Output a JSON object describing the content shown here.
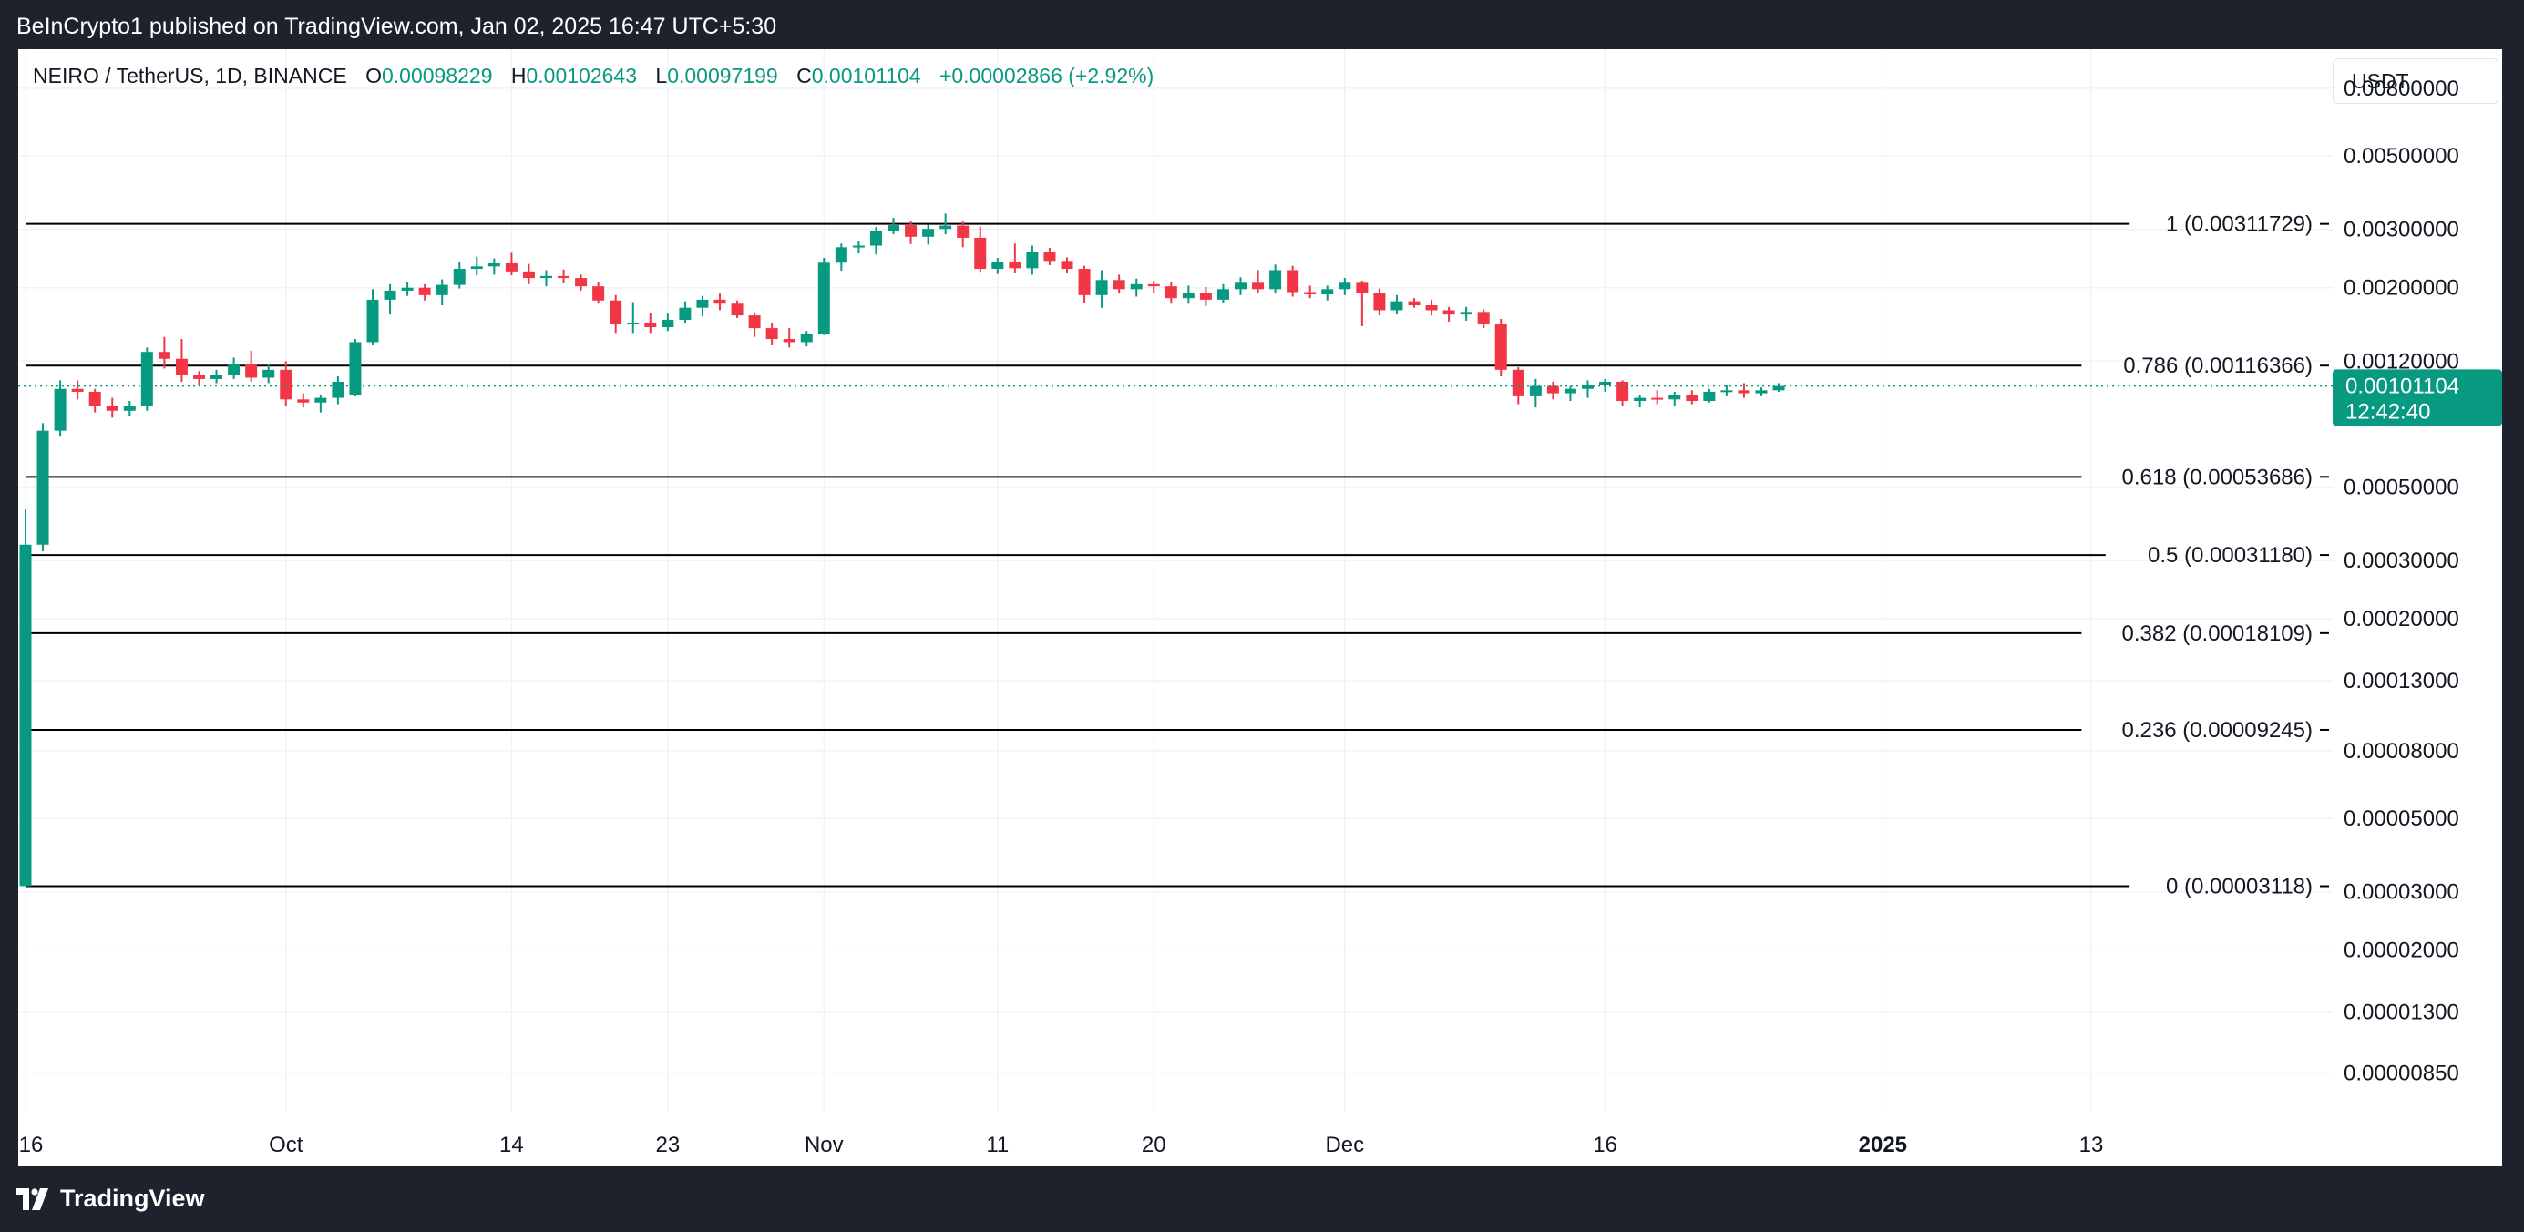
{
  "header": {
    "publisher_text": "BeInCrypto1 published on TradingView.com, Jan 02, 2025 16:47 UTC+5:30"
  },
  "footer": {
    "brand": "TradingView"
  },
  "legend": {
    "symbol": "NEIRO / TetherUS, 1D, BINANCE",
    "o_label": "O",
    "o_value": "0.00098229",
    "h_label": "H",
    "h_value": "0.00102643",
    "l_label": "L",
    "l_value": "0.00097199",
    "c_label": "C",
    "c_value": "0.00101104",
    "change": "+0.00002866 (+2.92%)"
  },
  "currency_button": "USDT",
  "colors": {
    "up": "#089981",
    "down": "#f23645",
    "grid": "#f0f3fa",
    "text": "#131722",
    "background": "#ffffff",
    "frame": "#1e222d"
  },
  "chart_data": {
    "type": "candlestick",
    "symbol": "NEIRO/USDT",
    "interval": "1D",
    "exchange": "BINANCE",
    "y_scale": "log",
    "ylim": [
      6.5e-06,
      0.0105
    ],
    "grid": true,
    "y_ticks": [
      "0.00800000",
      "0.00500000",
      "0.00300000",
      "0.00200000",
      "0.00120000",
      "0.00050000",
      "0.00030000",
      "0.00020000",
      "0.00013000",
      "0.00008000",
      "0.00005000",
      "0.00003000",
      "0.00002000",
      "0.00001300",
      "0.00000850"
    ],
    "x_ticks": [
      {
        "label": "16",
        "date": "2024-09-16"
      },
      {
        "label": "Oct",
        "date": "2024-10-01"
      },
      {
        "label": "14",
        "date": "2024-10-14"
      },
      {
        "label": "23",
        "date": "2024-10-23"
      },
      {
        "label": "Nov",
        "date": "2024-11-01"
      },
      {
        "label": "11",
        "date": "2024-11-11"
      },
      {
        "label": "20",
        "date": "2024-11-20"
      },
      {
        "label": "Dec",
        "date": "2024-12-01"
      },
      {
        "label": "16",
        "date": "2024-12-16"
      },
      {
        "label": "2025",
        "date": "2025-01-01"
      },
      {
        "label": "13",
        "date": "2025-01-13"
      }
    ],
    "last_price": {
      "value": "0.00101104",
      "countdown": "12:42:40"
    },
    "fib_levels": [
      {
        "label": "1 (0.00311729)",
        "value": 0.00311729
      },
      {
        "label": "0.786 (0.00116366)",
        "value": 0.00116366
      },
      {
        "label": "0.618 (0.00053686)",
        "value": 0.00053686
      },
      {
        "label": "0.5 (0.00031180)",
        "value": 0.0003118
      },
      {
        "label": "0.382 (0.00018109)",
        "value": 0.00018109
      },
      {
        "label": "0.236 (0.00009245)",
        "value": 9.245e-05
      },
      {
        "label": "0 (0.00003118)",
        "value": 3.118e-05
      }
    ],
    "candles": [
      {
        "date": "2024-09-16",
        "o": 3.12e-05,
        "h": 0.000428,
        "l": 3.12e-05,
        "c": 0.000335
      },
      {
        "date": "2024-09-17",
        "o": 0.000335,
        "h": 0.00078,
        "l": 0.00032,
        "c": 0.00074
      },
      {
        "date": "2024-09-18",
        "o": 0.00074,
        "h": 0.00105,
        "l": 0.00071,
        "c": 0.00099
      },
      {
        "date": "2024-09-19",
        "o": 0.00099,
        "h": 0.00105,
        "l": 0.00092,
        "c": 0.00097
      },
      {
        "date": "2024-09-20",
        "o": 0.00097,
        "h": 0.00099,
        "l": 0.00084,
        "c": 0.00088
      },
      {
        "date": "2024-09-21",
        "o": 0.00088,
        "h": 0.00093,
        "l": 0.00081,
        "c": 0.00085
      },
      {
        "date": "2024-09-22",
        "o": 0.00085,
        "h": 0.00091,
        "l": 0.00082,
        "c": 0.00088
      },
      {
        "date": "2024-09-23",
        "o": 0.00088,
        "h": 0.00132,
        "l": 0.00085,
        "c": 0.00128
      },
      {
        "date": "2024-09-24",
        "o": 0.00128,
        "h": 0.00142,
        "l": 0.00114,
        "c": 0.00122
      },
      {
        "date": "2024-09-25",
        "o": 0.00122,
        "h": 0.0014,
        "l": 0.00104,
        "c": 0.00109
      },
      {
        "date": "2024-09-26",
        "o": 0.00109,
        "h": 0.00112,
        "l": 0.00102,
        "c": 0.00106
      },
      {
        "date": "2024-09-27",
        "o": 0.00106,
        "h": 0.00113,
        "l": 0.00103,
        "c": 0.00109
      },
      {
        "date": "2024-09-28",
        "o": 0.00109,
        "h": 0.00123,
        "l": 0.00106,
        "c": 0.00118
      },
      {
        "date": "2024-09-29",
        "o": 0.00118,
        "h": 0.00129,
        "l": 0.00104,
        "c": 0.00107
      },
      {
        "date": "2024-09-30",
        "o": 0.00107,
        "h": 0.00117,
        "l": 0.00103,
        "c": 0.00113
      },
      {
        "date": "2024-10-01",
        "o": 0.00113,
        "h": 0.0012,
        "l": 0.00088,
        "c": 0.00092
      },
      {
        "date": "2024-10-02",
        "o": 0.00092,
        "h": 0.00096,
        "l": 0.00087,
        "c": 0.0009
      },
      {
        "date": "2024-10-03",
        "o": 0.0009,
        "h": 0.00095,
        "l": 0.00084,
        "c": 0.00093
      },
      {
        "date": "2024-10-04",
        "o": 0.00093,
        "h": 0.00108,
        "l": 0.00089,
        "c": 0.00104
      },
      {
        "date": "2024-10-05",
        "o": 0.00095,
        "h": 0.0014,
        "l": 0.00094,
        "c": 0.00137
      },
      {
        "date": "2024-10-06",
        "o": 0.00137,
        "h": 0.00198,
        "l": 0.00134,
        "c": 0.00184
      },
      {
        "date": "2024-10-07",
        "o": 0.00184,
        "h": 0.00205,
        "l": 0.00166,
        "c": 0.00196
      },
      {
        "date": "2024-10-08",
        "o": 0.00196,
        "h": 0.00208,
        "l": 0.00189,
        "c": 0.002
      },
      {
        "date": "2024-10-09",
        "o": 0.002,
        "h": 0.00205,
        "l": 0.00183,
        "c": 0.0019
      },
      {
        "date": "2024-10-10",
        "o": 0.0019,
        "h": 0.00212,
        "l": 0.00177,
        "c": 0.00204
      },
      {
        "date": "2024-10-11",
        "o": 0.00204,
        "h": 0.0024,
        "l": 0.00199,
        "c": 0.00228
      },
      {
        "date": "2024-10-12",
        "o": 0.00228,
        "h": 0.00248,
        "l": 0.00218,
        "c": 0.00232
      },
      {
        "date": "2024-10-13",
        "o": 0.00232,
        "h": 0.00245,
        "l": 0.00219,
        "c": 0.00237
      },
      {
        "date": "2024-10-14",
        "o": 0.00237,
        "h": 0.00255,
        "l": 0.00218,
        "c": 0.00224
      },
      {
        "date": "2024-10-15",
        "o": 0.00224,
        "h": 0.00236,
        "l": 0.00205,
        "c": 0.00214
      },
      {
        "date": "2024-10-16",
        "o": 0.00214,
        "h": 0.00226,
        "l": 0.00202,
        "c": 0.00217
      },
      {
        "date": "2024-10-17",
        "o": 0.00217,
        "h": 0.00227,
        "l": 0.00206,
        "c": 0.00214
      },
      {
        "date": "2024-10-18",
        "o": 0.00214,
        "h": 0.00219,
        "l": 0.00196,
        "c": 0.00202
      },
      {
        "date": "2024-10-19",
        "o": 0.00202,
        "h": 0.00208,
        "l": 0.00179,
        "c": 0.00183
      },
      {
        "date": "2024-10-20",
        "o": 0.00183,
        "h": 0.0019,
        "l": 0.00146,
        "c": 0.00155
      },
      {
        "date": "2024-10-21",
        "o": 0.00155,
        "h": 0.00181,
        "l": 0.00146,
        "c": 0.00157
      },
      {
        "date": "2024-10-22",
        "o": 0.00157,
        "h": 0.00168,
        "l": 0.00146,
        "c": 0.00152
      },
      {
        "date": "2024-10-23",
        "o": 0.00152,
        "h": 0.00167,
        "l": 0.00148,
        "c": 0.0016
      },
      {
        "date": "2024-10-24",
        "o": 0.0016,
        "h": 0.00182,
        "l": 0.00156,
        "c": 0.00174
      },
      {
        "date": "2024-10-25",
        "o": 0.00174,
        "h": 0.00189,
        "l": 0.00164,
        "c": 0.00184
      },
      {
        "date": "2024-10-26",
        "o": 0.00184,
        "h": 0.00192,
        "l": 0.00171,
        "c": 0.00179
      },
      {
        "date": "2024-10-27",
        "o": 0.00179,
        "h": 0.00183,
        "l": 0.00162,
        "c": 0.00165
      },
      {
        "date": "2024-10-28",
        "o": 0.00165,
        "h": 0.00168,
        "l": 0.00142,
        "c": 0.00151
      },
      {
        "date": "2024-10-29",
        "o": 0.00151,
        "h": 0.00157,
        "l": 0.00134,
        "c": 0.0014
      },
      {
        "date": "2024-10-30",
        "o": 0.0014,
        "h": 0.00151,
        "l": 0.00132,
        "c": 0.00137
      },
      {
        "date": "2024-10-31",
        "o": 0.00137,
        "h": 0.00148,
        "l": 0.00133,
        "c": 0.00145
      },
      {
        "date": "2024-11-01",
        "o": 0.00145,
        "h": 0.00246,
        "l": 0.00144,
        "c": 0.00238
      },
      {
        "date": "2024-11-02",
        "o": 0.00238,
        "h": 0.00272,
        "l": 0.00225,
        "c": 0.00265
      },
      {
        "date": "2024-11-03",
        "o": 0.00265,
        "h": 0.00277,
        "l": 0.00254,
        "c": 0.00268
      },
      {
        "date": "2024-11-04",
        "o": 0.00268,
        "h": 0.00305,
        "l": 0.00252,
        "c": 0.00296
      },
      {
        "date": "2024-11-05",
        "o": 0.00296,
        "h": 0.00325,
        "l": 0.0029,
        "c": 0.00309
      },
      {
        "date": "2024-11-06",
        "o": 0.00309,
        "h": 0.00318,
        "l": 0.00271,
        "c": 0.00285
      },
      {
        "date": "2024-11-07",
        "o": 0.00285,
        "h": 0.0031,
        "l": 0.0027,
        "c": 0.00301
      },
      {
        "date": "2024-11-08",
        "o": 0.00301,
        "h": 0.00335,
        "l": 0.0029,
        "c": 0.00308
      },
      {
        "date": "2024-11-09",
        "o": 0.00308,
        "h": 0.00317,
        "l": 0.00265,
        "c": 0.00283
      },
      {
        "date": "2024-11-10",
        "o": 0.00283,
        "h": 0.00306,
        "l": 0.00222,
        "c": 0.00228
      },
      {
        "date": "2024-11-11",
        "o": 0.00228,
        "h": 0.00246,
        "l": 0.0022,
        "c": 0.0024
      },
      {
        "date": "2024-11-12",
        "o": 0.0024,
        "h": 0.00272,
        "l": 0.00221,
        "c": 0.00229
      },
      {
        "date": "2024-11-13",
        "o": 0.00229,
        "h": 0.00268,
        "l": 0.00219,
        "c": 0.00256
      },
      {
        "date": "2024-11-14",
        "o": 0.00256,
        "h": 0.00264,
        "l": 0.00234,
        "c": 0.00241
      },
      {
        "date": "2024-11-15",
        "o": 0.00241,
        "h": 0.00247,
        "l": 0.00221,
        "c": 0.00228
      },
      {
        "date": "2024-11-16",
        "o": 0.00228,
        "h": 0.00233,
        "l": 0.0018,
        "c": 0.0019
      },
      {
        "date": "2024-11-17",
        "o": 0.0019,
        "h": 0.00226,
        "l": 0.00174,
        "c": 0.00211
      },
      {
        "date": "2024-11-18",
        "o": 0.00211,
        "h": 0.00219,
        "l": 0.00192,
        "c": 0.00198
      },
      {
        "date": "2024-11-19",
        "o": 0.00198,
        "h": 0.00213,
        "l": 0.00188,
        "c": 0.00205
      },
      {
        "date": "2024-11-20",
        "o": 0.00205,
        "h": 0.0021,
        "l": 0.00193,
        "c": 0.00202
      },
      {
        "date": "2024-11-21",
        "o": 0.00202,
        "h": 0.00208,
        "l": 0.00179,
        "c": 0.00186
      },
      {
        "date": "2024-11-22",
        "o": 0.00186,
        "h": 0.00203,
        "l": 0.00179,
        "c": 0.00193
      },
      {
        "date": "2024-11-23",
        "o": 0.00193,
        "h": 0.00201,
        "l": 0.00176,
        "c": 0.00184
      },
      {
        "date": "2024-11-24",
        "o": 0.00184,
        "h": 0.00205,
        "l": 0.0018,
        "c": 0.00198
      },
      {
        "date": "2024-11-25",
        "o": 0.00198,
        "h": 0.00215,
        "l": 0.0019,
        "c": 0.00207
      },
      {
        "date": "2024-11-26",
        "o": 0.00207,
        "h": 0.00226,
        "l": 0.00193,
        "c": 0.00198
      },
      {
        "date": "2024-11-27",
        "o": 0.00198,
        "h": 0.00235,
        "l": 0.00192,
        "c": 0.00226
      },
      {
        "date": "2024-11-28",
        "o": 0.00226,
        "h": 0.00233,
        "l": 0.00188,
        "c": 0.00194
      },
      {
        "date": "2024-11-29",
        "o": 0.00194,
        "h": 0.00203,
        "l": 0.00186,
        "c": 0.00191
      },
      {
        "date": "2024-11-30",
        "o": 0.00191,
        "h": 0.00203,
        "l": 0.00183,
        "c": 0.00198
      },
      {
        "date": "2024-12-01",
        "o": 0.00198,
        "h": 0.00214,
        "l": 0.0019,
        "c": 0.00207
      },
      {
        "date": "2024-12-02",
        "o": 0.00207,
        "h": 0.0021,
        "l": 0.00153,
        "c": 0.00193
      },
      {
        "date": "2024-12-03",
        "o": 0.00193,
        "h": 0.00199,
        "l": 0.00165,
        "c": 0.00171
      },
      {
        "date": "2024-12-04",
        "o": 0.00171,
        "h": 0.0019,
        "l": 0.00166,
        "c": 0.00182
      },
      {
        "date": "2024-12-05",
        "o": 0.00182,
        "h": 0.00186,
        "l": 0.00174,
        "c": 0.00177
      },
      {
        "date": "2024-12-06",
        "o": 0.00177,
        "h": 0.00184,
        "l": 0.00165,
        "c": 0.00171
      },
      {
        "date": "2024-12-07",
        "o": 0.00171,
        "h": 0.00175,
        "l": 0.00158,
        "c": 0.00166
      },
      {
        "date": "2024-12-08",
        "o": 0.00166,
        "h": 0.00175,
        "l": 0.00159,
        "c": 0.00169
      },
      {
        "date": "2024-12-09",
        "o": 0.00169,
        "h": 0.00172,
        "l": 0.00151,
        "c": 0.00155
      },
      {
        "date": "2024-12-10",
        "o": 0.00155,
        "h": 0.00161,
        "l": 0.00108,
        "c": 0.00113
      },
      {
        "date": "2024-12-11",
        "o": 0.00113,
        "h": 0.00115,
        "l": 0.00089,
        "c": 0.00094
      },
      {
        "date": "2024-12-12",
        "o": 0.00094,
        "h": 0.00106,
        "l": 0.00087,
        "c": 0.00101
      },
      {
        "date": "2024-12-13",
        "o": 0.00101,
        "h": 0.00104,
        "l": 0.00092,
        "c": 0.00096
      },
      {
        "date": "2024-12-14",
        "o": 0.00096,
        "h": 0.00101,
        "l": 0.00091,
        "c": 0.00099
      },
      {
        "date": "2024-12-15",
        "o": 0.00099,
        "h": 0.00105,
        "l": 0.00093,
        "c": 0.00102
      },
      {
        "date": "2024-12-16",
        "o": 0.00102,
        "h": 0.00106,
        "l": 0.00097,
        "c": 0.00104
      },
      {
        "date": "2024-12-17",
        "o": 0.00104,
        "h": 0.00105,
        "l": 0.00088,
        "c": 0.00091
      },
      {
        "date": "2024-12-18",
        "o": 0.00091,
        "h": 0.00095,
        "l": 0.00087,
        "c": 0.00093
      },
      {
        "date": "2024-12-19",
        "o": 0.00093,
        "h": 0.00098,
        "l": 0.00089,
        "c": 0.00092
      },
      {
        "date": "2024-12-20",
        "o": 0.00092,
        "h": 0.00097,
        "l": 0.00088,
        "c": 0.00095
      },
      {
        "date": "2024-12-21",
        "o": 0.00095,
        "h": 0.00098,
        "l": 0.00089,
        "c": 0.00091
      },
      {
        "date": "2024-12-22",
        "o": 0.00091,
        "h": 0.00099,
        "l": 0.0009,
        "c": 0.00097
      },
      {
        "date": "2024-12-23",
        "o": 0.00097,
        "h": 0.00102,
        "l": 0.00094,
        "c": 0.00098
      },
      {
        "date": "2024-12-24",
        "o": 0.00098,
        "h": 0.00103,
        "l": 0.00093,
        "c": 0.00096
      },
      {
        "date": "2024-12-25",
        "o": 0.00096,
        "h": 0.001,
        "l": 0.00094,
        "c": 0.00098
      },
      {
        "date": "2024-12-26",
        "o": 0.00098,
        "h": 0.00103,
        "l": 0.00097,
        "c": 0.00101
      }
    ]
  }
}
